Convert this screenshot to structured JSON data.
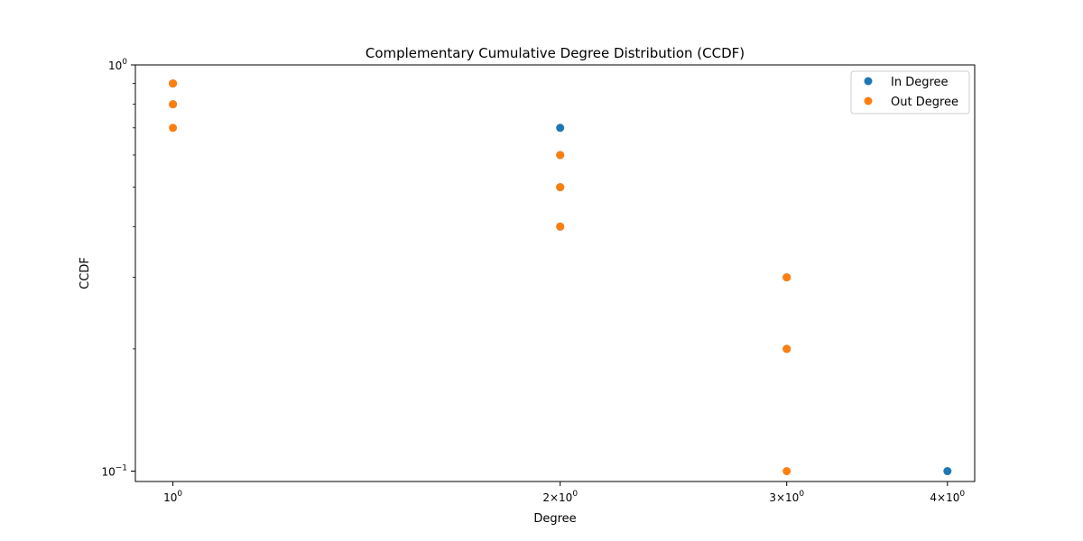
{
  "chart_data": {
    "type": "scatter",
    "title": "Complementary Cumulative Degree Distribution (CCDF)",
    "xlabel": "Degree",
    "ylabel": "CCDF",
    "x_scale": "log",
    "y_scale": "log",
    "xlim": [
      0.935,
      4.2
    ],
    "ylim": [
      0.0943,
      1.0
    ],
    "grid": false,
    "legend_position": "top-right",
    "x_ticks": [
      {
        "value": 1,
        "label": "10",
        "exp": "0",
        "coef": ""
      },
      {
        "value": 2,
        "label": "10",
        "exp": "0",
        "coef": "2×"
      },
      {
        "value": 3,
        "label": "10",
        "exp": "0",
        "coef": "3×"
      },
      {
        "value": 4,
        "label": "10",
        "exp": "0",
        "coef": "4×"
      }
    ],
    "y_ticks": [
      {
        "value": 1.0,
        "label": "10",
        "exp": "0"
      },
      {
        "value": 0.1,
        "label": "10",
        "exp": "−1"
      }
    ],
    "series": [
      {
        "name": "In Degree",
        "color": "#1f77b4",
        "points": [
          {
            "x": 1,
            "y": 0.9
          },
          {
            "x": 1,
            "y": 0.8
          },
          {
            "x": 2,
            "y": 0.7
          },
          {
            "x": 2,
            "y": 0.6
          },
          {
            "x": 2,
            "y": 0.5
          },
          {
            "x": 2,
            "y": 0.4
          },
          {
            "x": 3,
            "y": 0.3
          },
          {
            "x": 3,
            "y": 0.2
          },
          {
            "x": 4,
            "y": 0.1
          }
        ]
      },
      {
        "name": "Out Degree",
        "color": "#ff7f0e",
        "points": [
          {
            "x": 1,
            "y": 0.9
          },
          {
            "x": 1,
            "y": 0.8
          },
          {
            "x": 1,
            "y": 0.7
          },
          {
            "x": 2,
            "y": 0.6
          },
          {
            "x": 2,
            "y": 0.5
          },
          {
            "x": 2,
            "y": 0.4
          },
          {
            "x": 3,
            "y": 0.3
          },
          {
            "x": 3,
            "y": 0.2
          },
          {
            "x": 3,
            "y": 0.1
          }
        ]
      }
    ]
  }
}
